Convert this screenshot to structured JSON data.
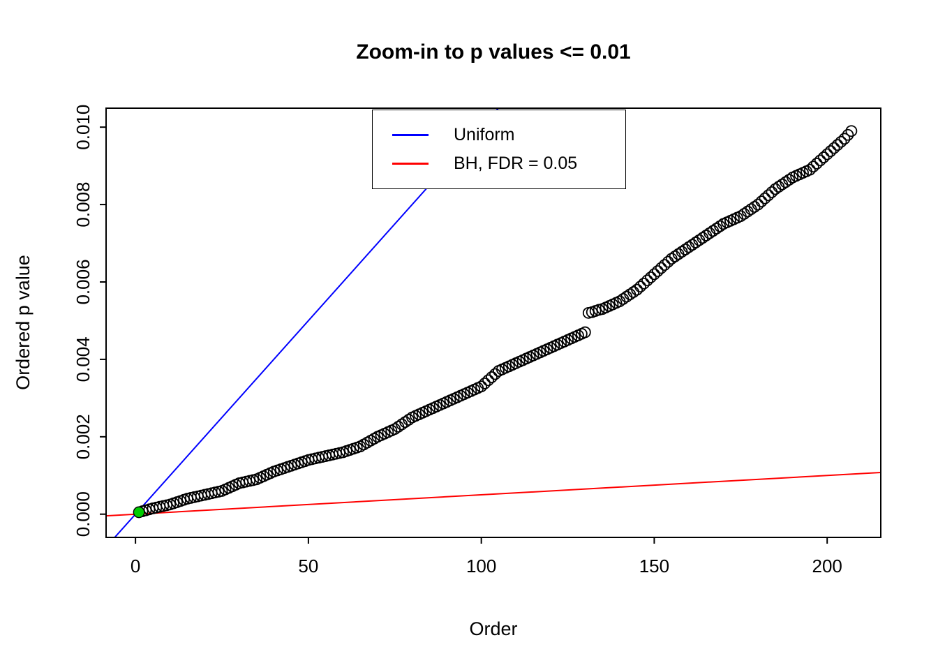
{
  "page": {
    "background": "#ffffff"
  },
  "chart_data": {
    "type": "scatter",
    "title": "Zoom-in to p values <= 0.01",
    "xlabel": "Order",
    "ylabel": "Ordered p value",
    "xlim": [
      -8.5,
      215.5
    ],
    "ylim": [
      -0.0006,
      0.01049
    ],
    "xticks": [
      0,
      50,
      100,
      150,
      200
    ],
    "yticks": [
      0,
      0.002,
      0.004,
      0.006,
      0.008,
      0.01
    ],
    "ytick_labels": [
      "0.000",
      "0.002",
      "0.004",
      "0.006",
      "0.008",
      "0.010"
    ],
    "grid": false,
    "legend_position": "top-center",
    "series": [
      {
        "name": "ordered-p-values",
        "marker": "open-circle",
        "color": "#000000",
        "x_start": 1,
        "y": [
          5e-05,
          7.5e-05,
          0.0001,
          0.000125,
          0.00015,
          0.00017,
          0.00019,
          0.00021,
          0.00023,
          0.00025,
          0.00028,
          0.00031,
          0.00034,
          0.00037,
          0.0004,
          0.00042,
          0.00044,
          0.00046,
          0.00048,
          0.0005,
          0.00052,
          0.00054,
          0.00056,
          0.00058,
          0.0006,
          0.00064,
          0.00068,
          0.00072,
          0.00076,
          0.0008,
          0.00082,
          0.00084,
          0.00086,
          0.00088,
          0.0009,
          0.00094,
          0.00098,
          0.00102,
          0.00106,
          0.0011,
          0.00113,
          0.00116,
          0.00119,
          0.00122,
          0.00125,
          0.00128,
          0.00131,
          0.00134,
          0.00137,
          0.0014,
          0.00142,
          0.00144,
          0.00146,
          0.00148,
          0.0015,
          0.00152,
          0.00154,
          0.00156,
          0.00158,
          0.0016,
          0.00163,
          0.00166,
          0.00169,
          0.00172,
          0.00175,
          0.0018,
          0.00185,
          0.0019,
          0.00195,
          0.002,
          0.00204,
          0.00208,
          0.00212,
          0.00216,
          0.0022,
          0.00226,
          0.00232,
          0.00238,
          0.00244,
          0.0025,
          0.00254,
          0.00258,
          0.00262,
          0.00266,
          0.0027,
          0.00274,
          0.00278,
          0.00282,
          0.00286,
          0.0029,
          0.00294,
          0.00298,
          0.00302,
          0.00306,
          0.0031,
          0.00314,
          0.00318,
          0.00322,
          0.00326,
          0.0033,
          0.00338,
          0.00346,
          0.00354,
          0.00362,
          0.0037,
          0.00374,
          0.00378,
          0.00382,
          0.00386,
          0.0039,
          0.00394,
          0.00398,
          0.00402,
          0.00406,
          0.0041,
          0.00414,
          0.00418,
          0.00422,
          0.00426,
          0.0043,
          0.00434,
          0.00438,
          0.00442,
          0.00446,
          0.0045,
          0.00454,
          0.00458,
          0.00462,
          0.00466,
          0.0047,
          0.0052,
          0.00522,
          0.00525,
          0.00528,
          0.0053,
          0.00534,
          0.00538,
          0.00542,
          0.00546,
          0.0055,
          0.00556,
          0.00562,
          0.00568,
          0.00574,
          0.0058,
          0.00588,
          0.00596,
          0.00604,
          0.00612,
          0.0062,
          0.00628,
          0.00636,
          0.00644,
          0.00652,
          0.0066,
          0.00666,
          0.00672,
          0.00678,
          0.00684,
          0.0069,
          0.00696,
          0.00702,
          0.00708,
          0.00714,
          0.0072,
          0.00726,
          0.00732,
          0.00738,
          0.00744,
          0.0075,
          0.00754,
          0.00758,
          0.00762,
          0.00766,
          0.0077,
          0.00776,
          0.00782,
          0.00788,
          0.00794,
          0.008,
          0.00808,
          0.00816,
          0.00824,
          0.00832,
          0.0084,
          0.00846,
          0.00852,
          0.00858,
          0.00864,
          0.0087,
          0.00874,
          0.00878,
          0.00882,
          0.00886,
          0.0089,
          0.00898,
          0.00906,
          0.00914,
          0.00922,
          0.0093,
          0.00938,
          0.00946,
          0.00954,
          0.00962,
          0.0097,
          0.0098,
          0.0099
        ]
      }
    ],
    "lines": [
      {
        "name": "uniform",
        "label": "Uniform",
        "color": "#0000ff",
        "slope": 0.0001,
        "intercept": 0
      },
      {
        "name": "bh",
        "label": "BH, FDR = 0.05",
        "color": "#ff0000",
        "slope": 5e-06,
        "intercept": 0
      }
    ],
    "highlight_point": {
      "x": 1,
      "y": 5e-05,
      "color": "#00cc00"
    },
    "legend": [
      {
        "label": "Uniform",
        "color": "#0000ff"
      },
      {
        "label": "BH, FDR = 0.05",
        "color": "#ff0000"
      }
    ]
  }
}
